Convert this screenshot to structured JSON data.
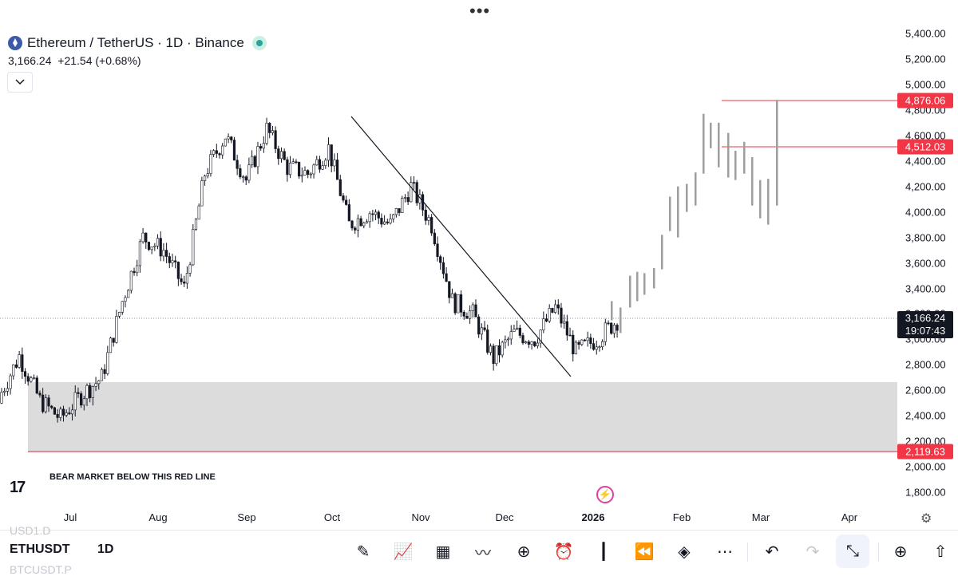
{
  "header": {
    "title": "Ethereum / TetherUS · 1D · Binance",
    "price": "3,166.24",
    "change": "+21.54 (+0.68%)"
  },
  "annotation": "BEAR MARKET BELOW THIS RED LINE",
  "price_axis": [
    "5,400.00",
    "5,200.00",
    "5,000.00",
    "4,800.00",
    "4,600.00",
    "4,400.00",
    "4,200.00",
    "4,000.00",
    "3,800.00",
    "3,600.00",
    "3,400.00",
    "3,200.00",
    "3,000.00",
    "2,800.00",
    "2,600.00",
    "2,400.00",
    "2,200.00",
    "2,000.00",
    "1,800.00"
  ],
  "price_tags": {
    "level_high": "4,876.06",
    "level_mid": "4,512.03",
    "level_low": "2,119.63",
    "current_price": "3,166.24",
    "countdown": "19:07:43"
  },
  "time_axis": [
    "Jul",
    "Aug",
    "Sep",
    "Oct",
    "Nov",
    "Dec",
    "2026",
    "Feb",
    "Mar",
    "Apr"
  ],
  "bottom_bar": {
    "symbol": "ETHUSDT",
    "interval": "1D",
    "faded_top": "USD1.D",
    "faded_bottom": "BTCUSDT.P"
  },
  "logo_text": "17",
  "colors": {
    "up": "#26a69a",
    "down": "#131722",
    "level_line": "#f23645",
    "zone": "#dcdcdc",
    "projection": "#9e9e9e"
  },
  "icons": [
    "brush-icon",
    "chart-type-icon",
    "layout-grid-icon",
    "indicators-icon",
    "add-icon",
    "alert-icon",
    "candles-icon",
    "replay-icon",
    "layers-icon",
    "more-icon",
    "undo-icon",
    "redo-icon",
    "exit-fullscreen-icon",
    "zoom-icon",
    "share-icon"
  ],
  "chart_data": {
    "type": "candlestick",
    "symbol": "ETHUSDT",
    "interval": "1D",
    "ylim": [
      1700,
      5500
    ],
    "current_price": 3166.24,
    "levels": [
      4876.06,
      4512.03,
      2119.63
    ],
    "zone": [
      2119.63,
      2670
    ],
    "trendline": {
      "from": [
        "2025-10-06",
        4760
      ],
      "to": [
        "2025-12-21",
        2720
      ]
    },
    "points": [
      {
        "date": "2025-06-15",
        "close": 2540
      },
      {
        "date": "2025-06-22",
        "close": 2870
      },
      {
        "date": "2025-06-29",
        "close": 2520
      },
      {
        "date": "2025-07-06",
        "close": 2380
      },
      {
        "date": "2025-07-13",
        "close": 2560
      },
      {
        "date": "2025-07-20",
        "close": 2700
      },
      {
        "date": "2025-07-27",
        "close": 3300
      },
      {
        "date": "2025-08-03",
        "close": 3800
      },
      {
        "date": "2025-08-10",
        "close": 3700
      },
      {
        "date": "2025-08-17",
        "close": 3400
      },
      {
        "date": "2025-08-24",
        "close": 4300
      },
      {
        "date": "2025-08-31",
        "close": 4600
      },
      {
        "date": "2025-09-07",
        "close": 4250
      },
      {
        "date": "2025-09-14",
        "close": 4650
      },
      {
        "date": "2025-09-21",
        "close": 4350
      },
      {
        "date": "2025-09-28",
        "close": 4300
      },
      {
        "date": "2025-10-05",
        "close": 4500
      },
      {
        "date": "2025-10-12",
        "close": 3900
      },
      {
        "date": "2025-10-19",
        "close": 4000
      },
      {
        "date": "2025-10-26",
        "close": 3900
      },
      {
        "date": "2025-11-02",
        "close": 4200
      },
      {
        "date": "2025-11-09",
        "close": 3900
      },
      {
        "date": "2025-11-16",
        "close": 3300
      },
      {
        "date": "2025-11-23",
        "close": 3200
      },
      {
        "date": "2025-11-30",
        "close": 2850
      },
      {
        "date": "2025-12-07",
        "close": 3050
      },
      {
        "date": "2025-12-14",
        "close": 3000
      },
      {
        "date": "2025-12-21",
        "close": 3250
      },
      {
        "date": "2025-12-28",
        "close": 2900
      },
      {
        "date": "2026-01-04",
        "close": 3000
      },
      {
        "date": "2026-01-11",
        "close": 3150
      },
      {
        "date": "2026-01-18",
        "close": 3166.24
      }
    ],
    "projection": [
      {
        "date": "2026-01-18",
        "open": 3150,
        "close": 3250
      },
      {
        "date": "2026-01-25",
        "open": 3250,
        "close": 3450
      },
      {
        "date": "2026-02-01",
        "open": 3450,
        "close": 3900
      },
      {
        "date": "2026-02-08",
        "open": 3900,
        "close": 4250
      },
      {
        "date": "2026-02-15",
        "open": 4250,
        "close": 4700
      },
      {
        "date": "2026-02-22",
        "open": 4700,
        "close": 4300
      },
      {
        "date": "2026-03-01",
        "open": 4300,
        "close": 3900
      },
      {
        "date": "2026-03-05",
        "open": 4100,
        "close": 4876
      }
    ]
  }
}
